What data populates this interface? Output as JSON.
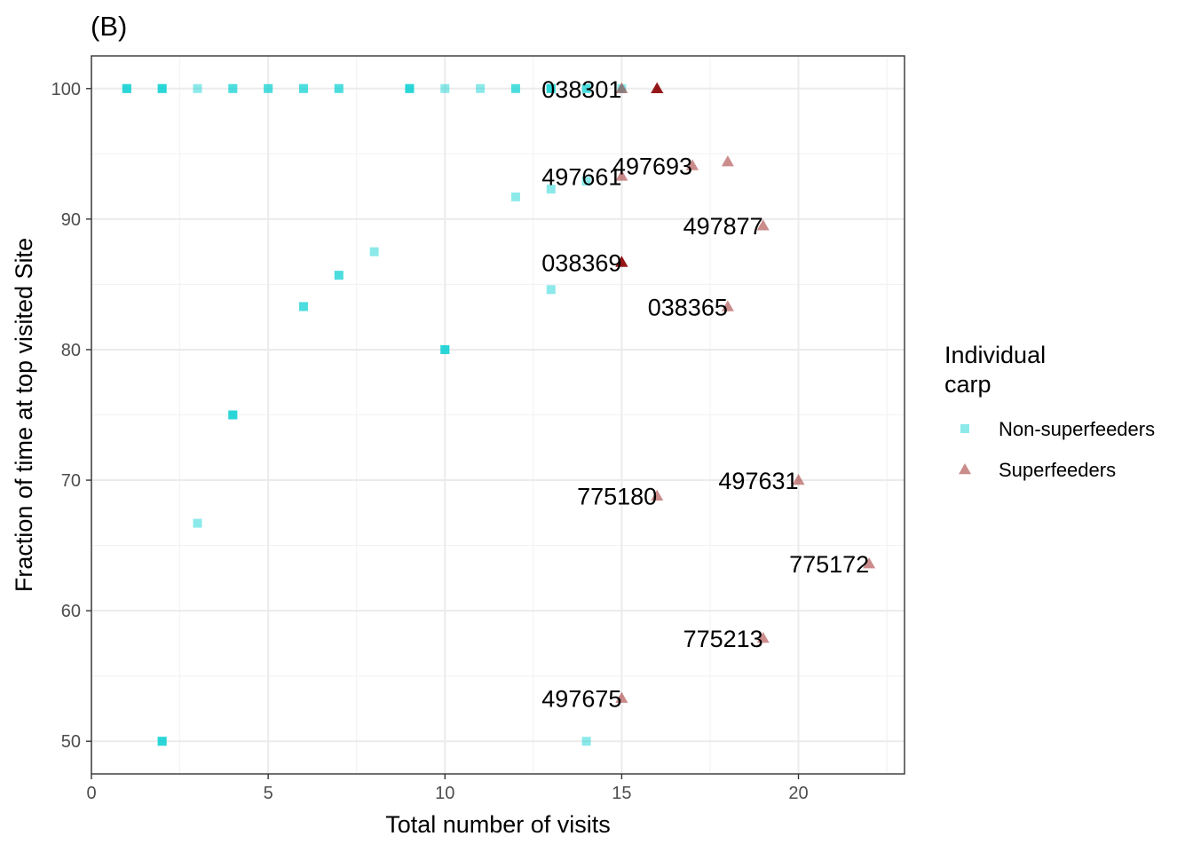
{
  "chart_data": {
    "type": "scatter",
    "title": "(B)",
    "xlabel": "Total number of visits",
    "ylabel": "Fraction of time at top visited Site",
    "xlim": [
      0,
      23
    ],
    "ylim": [
      47.5,
      102.5
    ],
    "x_ticks": [
      0,
      5,
      10,
      15,
      20
    ],
    "y_ticks": [
      50,
      60,
      70,
      80,
      90,
      100
    ],
    "grid": true,
    "theme": "bw",
    "legend": {
      "title_lines": [
        "Individual",
        "carp"
      ],
      "position": "right",
      "entries": [
        {
          "label": "Non-superfeeders",
          "shape": "square",
          "color": "#00CED1"
        },
        {
          "label": "Superfeeders",
          "shape": "triangle",
          "color": "#8B0000"
        }
      ]
    },
    "series": [
      {
        "name": "Non-superfeeders",
        "shape": "square",
        "color": "#00CED1",
        "alpha": 0.45,
        "points": [
          {
            "x": 1,
            "y": 100
          },
          {
            "x": 1,
            "y": 100
          },
          {
            "x": 1,
            "y": 100
          },
          {
            "x": 2,
            "y": 100
          },
          {
            "x": 2,
            "y": 100
          },
          {
            "x": 2,
            "y": 100
          },
          {
            "x": 3,
            "y": 100
          },
          {
            "x": 4,
            "y": 100
          },
          {
            "x": 4,
            "y": 100
          },
          {
            "x": 5,
            "y": 100
          },
          {
            "x": 5,
            "y": 100
          },
          {
            "x": 6,
            "y": 100
          },
          {
            "x": 6,
            "y": 100
          },
          {
            "x": 7,
            "y": 100
          },
          {
            "x": 7,
            "y": 100
          },
          {
            "x": 9,
            "y": 100
          },
          {
            "x": 9,
            "y": 100
          },
          {
            "x": 9,
            "y": 100
          },
          {
            "x": 10,
            "y": 100
          },
          {
            "x": 11,
            "y": 100
          },
          {
            "x": 12,
            "y": 100
          },
          {
            "x": 12,
            "y": 100
          },
          {
            "x": 13,
            "y": 100
          },
          {
            "x": 13,
            "y": 100
          },
          {
            "x": 13,
            "y": 100
          },
          {
            "x": 14,
            "y": 100
          },
          {
            "x": 14,
            "y": 100
          },
          {
            "x": 15,
            "y": 100
          },
          {
            "x": 13,
            "y": 92.3
          },
          {
            "x": 14,
            "y": 92.9
          },
          {
            "x": 12,
            "y": 91.7
          },
          {
            "x": 8,
            "y": 87.5
          },
          {
            "x": 7,
            "y": 85.7
          },
          {
            "x": 7,
            "y": 85.7
          },
          {
            "x": 13,
            "y": 84.6
          },
          {
            "x": 6,
            "y": 83.3
          },
          {
            "x": 6,
            "y": 83.3
          },
          {
            "x": 10,
            "y": 80
          },
          {
            "x": 10,
            "y": 80
          },
          {
            "x": 10,
            "y": 80
          },
          {
            "x": 4,
            "y": 75
          },
          {
            "x": 4,
            "y": 75
          },
          {
            "x": 4,
            "y": 75
          },
          {
            "x": 3,
            "y": 66.7
          },
          {
            "x": 2,
            "y": 50
          },
          {
            "x": 2,
            "y": 50
          },
          {
            "x": 2,
            "y": 50
          },
          {
            "x": 14,
            "y": 50
          }
        ]
      },
      {
        "name": "Superfeeders",
        "shape": "triangle",
        "color": "#8B0000",
        "alpha": 0.45,
        "points": [
          {
            "x": 15,
            "y": 100,
            "label": "038301"
          },
          {
            "x": 16,
            "y": 100
          },
          {
            "x": 16,
            "y": 100
          },
          {
            "x": 16,
            "y": 100
          },
          {
            "x": 16,
            "y": 100
          },
          {
            "x": 18,
            "y": 94.4
          },
          {
            "x": 17,
            "y": 94.1,
            "label": "497693"
          },
          {
            "x": 15,
            "y": 93.3,
            "label": "497661"
          },
          {
            "x": 19,
            "y": 89.5,
            "label": "497877"
          },
          {
            "x": 15,
            "y": 86.7,
            "label": "038369"
          },
          {
            "x": 15,
            "y": 86.7
          },
          {
            "x": 15,
            "y": 86.7
          },
          {
            "x": 15,
            "y": 86.7
          },
          {
            "x": 18,
            "y": 83.3,
            "label": "038365"
          },
          {
            "x": 20,
            "y": 70,
            "label": "497631"
          },
          {
            "x": 16,
            "y": 68.8,
            "label": "775180"
          },
          {
            "x": 22,
            "y": 63.6,
            "label": "775172"
          },
          {
            "x": 19,
            "y": 57.9,
            "label": "775213"
          },
          {
            "x": 15,
            "y": 53.3,
            "label": "497675"
          }
        ]
      }
    ]
  }
}
